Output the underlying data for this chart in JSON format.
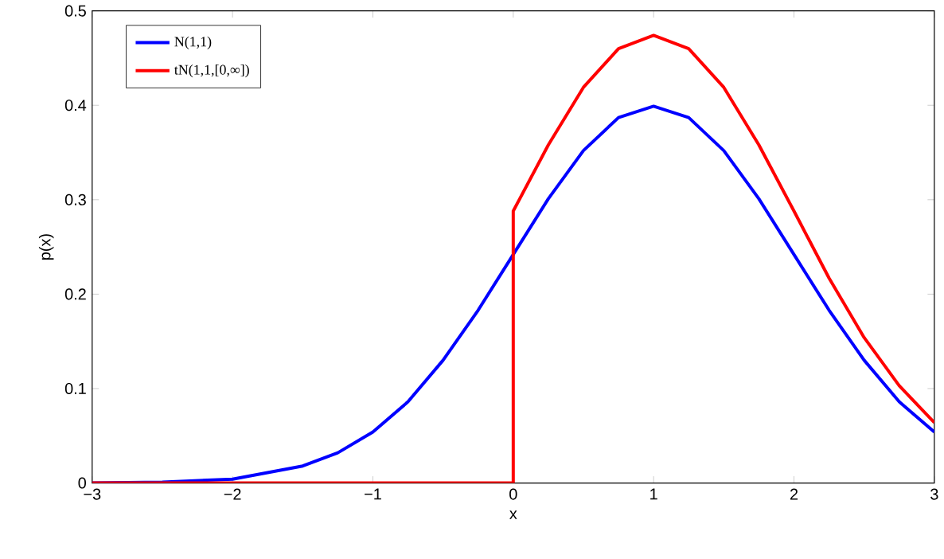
{
  "chart_data": {
    "type": "line",
    "xlabel": "x",
    "ylabel": "p(x)",
    "xlim": [
      -3,
      3
    ],
    "ylim": [
      0,
      0.5
    ],
    "xticks": [
      {
        "value": -3,
        "label": "−3"
      },
      {
        "value": -2,
        "label": "−2"
      },
      {
        "value": -1,
        "label": "−1"
      },
      0,
      1,
      2,
      3
    ],
    "yticks": [
      0,
      0.1,
      0.2,
      0.3,
      0.4,
      0.5
    ],
    "legend": "top left",
    "marker": "none",
    "line_style": "solid",
    "series": [
      {
        "name": "N(1,1)",
        "color": "#0000ff",
        "x": [
          -3,
          -2.5,
          -2,
          -1.5,
          -1.25,
          -1,
          -0.75,
          -0.5,
          -0.25,
          0,
          0.25,
          0.5,
          0.75,
          1,
          1.25,
          1.5,
          1.75,
          2,
          2.25,
          2.5,
          2.75,
          3
        ],
        "values": [
          0,
          0.001,
          0.004,
          0.018,
          0.032,
          0.054,
          0.086,
          0.13,
          0.183,
          0.242,
          0.301,
          0.352,
          0.387,
          0.399,
          0.387,
          0.352,
          0.301,
          0.242,
          0.183,
          0.13,
          0.086,
          0.054
        ]
      },
      {
        "name": "tN(1,1,[0,∞])",
        "color": "#ff0000",
        "x": [
          -3,
          0,
          0,
          0.25,
          0.5,
          0.75,
          1,
          1.25,
          1.5,
          1.75,
          2,
          2.25,
          2.5,
          2.75,
          3
        ],
        "values": [
          0,
          0,
          0.288,
          0.358,
          0.419,
          0.46,
          0.474,
          0.46,
          0.419,
          0.358,
          0.288,
          0.217,
          0.154,
          0.103,
          0.064
        ]
      }
    ]
  }
}
